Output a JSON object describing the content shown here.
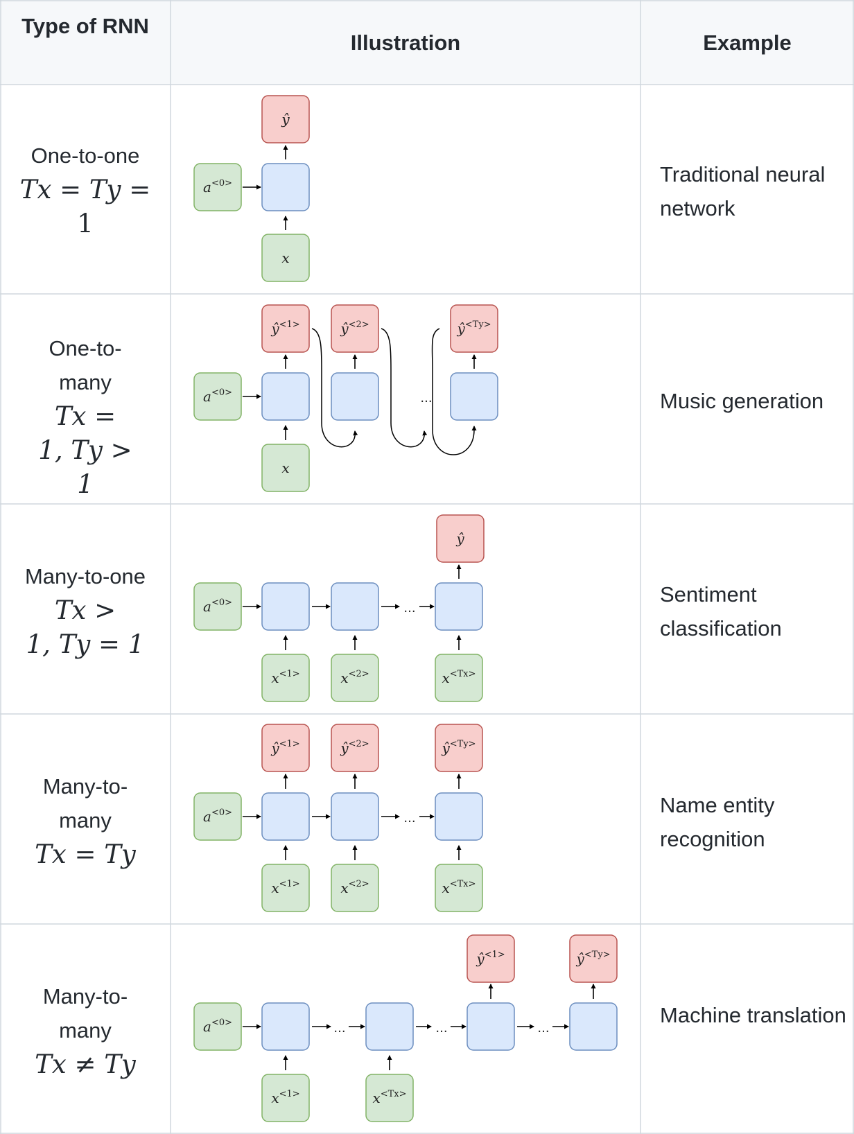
{
  "header": {
    "type_col": "Type of RNN",
    "illustration_col": "Illustration",
    "example_col": "Example"
  },
  "rows": [
    {
      "type_name": "One-to-one",
      "formula": "Tₓ = Tᵧ = 1",
      "formula_lines": [
        "Tx = Ty =",
        "1"
      ],
      "example": "Traditional neural network"
    },
    {
      "type_name": "One-to-many",
      "formula": "Tₓ = 1, Tᵧ > 1",
      "formula_lines": [
        "Tx =",
        "1, Ty > 1"
      ],
      "example": "Music generation"
    },
    {
      "type_name": "Many-to-one",
      "formula": "Tₓ > 1, Tᵧ = 1",
      "formula_lines": [
        "Tx >",
        "1, Ty = 1"
      ],
      "example": "Sentiment classification"
    },
    {
      "type_name": "Many-to-many",
      "formula": "Tₓ = Tᵧ",
      "formula_lines": [
        "Tx = Ty"
      ],
      "example": "Name entity recognition"
    },
    {
      "type_name": "Many-to-many",
      "formula": "Tₓ ≠ Tᵧ",
      "formula_lines": [
        "Tx ≠ Ty"
      ],
      "example": "Machine translation"
    }
  ],
  "diagram_labels": {
    "a0": "a<0>",
    "x": "x",
    "y_hat": "ŷ",
    "x1": "x<1>",
    "x2": "x<2>",
    "xTx": "x<Tx>",
    "y1": "ŷ<1>",
    "y2": "ŷ<2>",
    "yTy": "ŷ<Ty>",
    "ellipsis": "..."
  },
  "colors": {
    "border": "#d0d7de",
    "header_bg": "#f6f8fa",
    "input_fill": "#d5e8d4",
    "input_stroke": "#82b366",
    "hidden_fill": "#dae8fc",
    "hidden_stroke": "#6c8ebf",
    "output_fill": "#f8cecc",
    "output_stroke": "#b85450"
  }
}
